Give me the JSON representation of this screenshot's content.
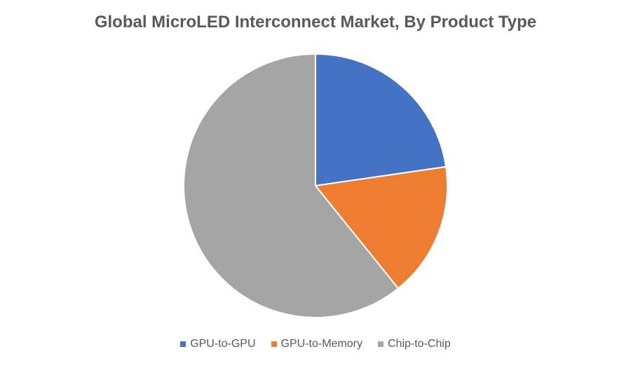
{
  "chart_data": {
    "type": "pie",
    "title": "Global MicroLED Interconnect Market, By Product Type",
    "categories": [
      "GPU-to-GPU",
      "GPU-to-Memory",
      "Chip-to-Chip"
    ],
    "values": [
      22.7,
      16.5,
      60.8
    ],
    "colors": [
      "#4472C4",
      "#ED7D31",
      "#A5A5A5"
    ],
    "legend_position": "bottom"
  }
}
